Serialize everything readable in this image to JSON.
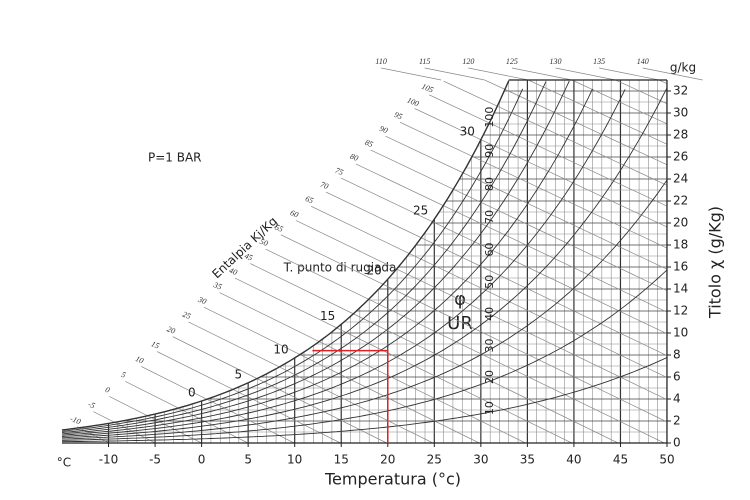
{
  "chart_data": {
    "type": "psychrometric",
    "pressure_label": "P=1 BAR",
    "x_label": "Temperatura (°c)",
    "x_unit": "°C",
    "y_label": "Titolo χ (g/Kg)",
    "y_unit": "g/kg",
    "xlim": [
      -15,
      50
    ],
    "xticks": [
      -10,
      -5,
      0,
      5,
      10,
      15,
      20,
      25,
      30,
      35,
      40,
      45,
      50
    ],
    "ylim": [
      0,
      33
    ],
    "yticks": [
      0,
      2,
      4,
      6,
      8,
      10,
      12,
      14,
      16,
      18,
      20,
      22,
      24,
      26,
      28,
      30,
      32
    ],
    "enthalpy_label": "Entalpia Kj/Kg",
    "enthalpy_values": [
      -10,
      -5,
      0,
      5,
      10,
      15,
      20,
      25,
      30,
      35,
      40,
      45,
      50,
      55,
      60,
      65,
      70,
      75,
      80,
      85,
      90,
      95,
      100,
      105,
      110,
      115,
      120,
      125,
      130,
      135,
      140
    ],
    "rh_symbol": "φ",
    "rh_label": "UR",
    "rh_values": [
      10,
      20,
      30,
      40,
      50,
      60,
      70,
      80,
      90,
      100
    ],
    "dew_point_label": "T. punto di rugiada",
    "dew_point_values": [
      0,
      5,
      10,
      15,
      20,
      25,
      30
    ],
    "point": {
      "temperature": 20,
      "humidity_ratio": 8.4,
      "dew_point": 11.9,
      "color": "#e02020"
    },
    "grid": true
  }
}
